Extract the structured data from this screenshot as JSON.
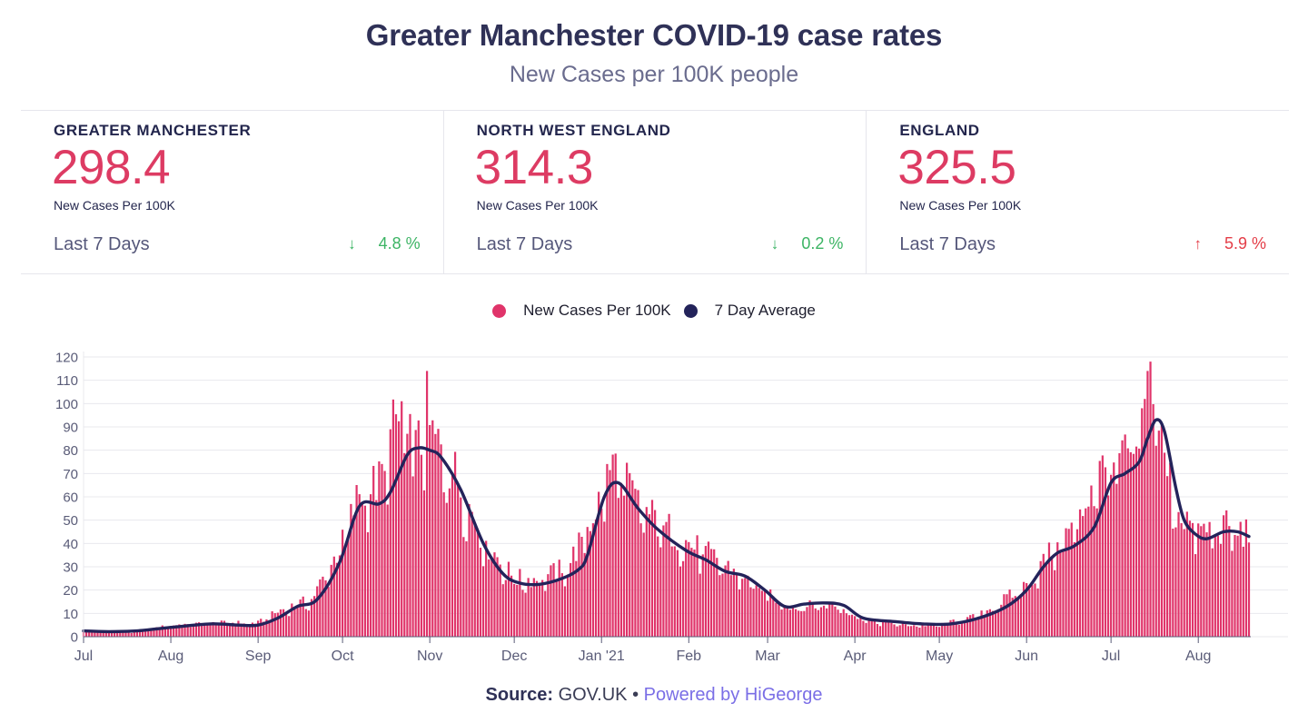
{
  "header": {
    "title": "Greater Manchester COVID-19 case rates",
    "subtitle": "New Cases per 100K people"
  },
  "cards": [
    {
      "region": "GREATER MANCHESTER",
      "value": "298.4",
      "unit": "New Cases Per 100K",
      "period": "Last 7 Days",
      "change": "4.8 %",
      "direction": "down",
      "arrow": "↓"
    },
    {
      "region": "NORTH WEST ENGLAND",
      "value": "314.3",
      "unit": "New Cases Per 100K",
      "period": "Last 7 Days",
      "change": "0.2 %",
      "direction": "down",
      "arrow": "↓"
    },
    {
      "region": "ENGLAND",
      "value": "325.5",
      "unit": "New Cases Per 100K",
      "period": "Last 7 Days",
      "change": "5.9 %",
      "direction": "up",
      "arrow": "↑"
    }
  ],
  "footer": {
    "source_label": "Source:",
    "source_value": "GOV.UK",
    "separator": "•",
    "powered_by": "Powered by HiGeorge"
  },
  "colors": {
    "bars": "#e0346a",
    "average_line": "#23235a",
    "value_text": "#dd3b63",
    "change_down": "#3cb464",
    "change_up": "#e43d47",
    "gridline": "#e8e8ee"
  },
  "chart_data": {
    "type": "bar",
    "title": "",
    "xlabel": "",
    "ylabel": "",
    "ylim": [
      0,
      120
    ],
    "yticks": [
      0,
      10,
      20,
      30,
      40,
      50,
      60,
      70,
      80,
      90,
      100,
      110,
      120
    ],
    "grid": true,
    "legend_position": "top-center",
    "x_start_date": "2020-07-01",
    "x_end_date": "2021-08-19",
    "x_tick_labels": [
      {
        "label": "Jul",
        "date": "2020-07-01"
      },
      {
        "label": "Aug",
        "date": "2020-08-01"
      },
      {
        "label": "Sep",
        "date": "2020-09-01"
      },
      {
        "label": "Oct",
        "date": "2020-10-01"
      },
      {
        "label": "Nov",
        "date": "2020-11-01"
      },
      {
        "label": "Dec",
        "date": "2020-12-01"
      },
      {
        "label": "Jan '21",
        "date": "2021-01-01"
      },
      {
        "label": "Feb",
        "date": "2021-02-01"
      },
      {
        "label": "Mar",
        "date": "2021-03-01"
      },
      {
        "label": "Apr",
        "date": "2021-04-01"
      },
      {
        "label": "May",
        "date": "2021-05-01"
      },
      {
        "label": "Jun",
        "date": "2021-06-01"
      },
      {
        "label": "Jul",
        "date": "2021-07-01"
      },
      {
        "label": "Aug",
        "date": "2021-08-01"
      }
    ],
    "series": [
      {
        "name": "New Cases Per 100K",
        "kind": "bar",
        "description": "daily values, shown as key dates",
        "keypoints": [
          [
            "2020-07-01",
            2.5
          ],
          [
            "2020-07-20",
            2
          ],
          [
            "2020-08-01",
            5
          ],
          [
            "2020-08-20",
            6
          ],
          [
            "2020-09-01",
            6
          ],
          [
            "2020-09-10",
            12
          ],
          [
            "2020-09-20",
            16
          ],
          [
            "2020-10-01",
            40
          ],
          [
            "2020-10-07",
            62
          ],
          [
            "2020-10-14",
            66
          ],
          [
            "2020-10-20",
            93
          ],
          [
            "2020-10-27",
            80
          ],
          [
            "2020-11-01",
            88
          ],
          [
            "2020-11-10",
            70
          ],
          [
            "2020-11-20",
            42
          ],
          [
            "2020-12-01",
            25
          ],
          [
            "2020-12-10",
            25
          ],
          [
            "2020-12-20",
            30
          ],
          [
            "2021-01-01",
            60
          ],
          [
            "2021-01-05",
            75
          ],
          [
            "2021-01-15",
            55
          ],
          [
            "2021-02-01",
            40
          ],
          [
            "2021-02-15",
            30
          ],
          [
            "2021-03-01",
            18
          ],
          [
            "2021-03-10",
            13
          ],
          [
            "2021-03-25",
            14
          ],
          [
            "2021-04-05",
            7
          ],
          [
            "2021-04-20",
            5
          ],
          [
            "2021-05-01",
            5
          ],
          [
            "2021-05-15",
            9
          ],
          [
            "2021-06-01",
            22
          ],
          [
            "2021-06-10",
            37
          ],
          [
            "2021-06-20",
            50
          ],
          [
            "2021-06-25",
            70
          ],
          [
            "2021-07-01",
            72
          ],
          [
            "2021-07-10",
            80
          ],
          [
            "2021-07-16",
            110
          ],
          [
            "2021-07-20",
            75
          ],
          [
            "2021-07-25",
            55
          ],
          [
            "2021-08-01",
            45
          ],
          [
            "2021-08-10",
            47
          ],
          [
            "2021-08-19",
            44
          ]
        ],
        "spikes": [
          [
            "2020-10-31",
            114
          ],
          [
            "2020-10-22",
            101
          ],
          [
            "2021-07-15",
            118
          ],
          [
            "2021-07-14",
            114
          ]
        ]
      },
      {
        "name": "7 Day Average",
        "kind": "line",
        "points": [
          [
            "2020-07-01",
            2.5
          ],
          [
            "2020-07-10",
            2.2
          ],
          [
            "2020-07-20",
            2.5
          ],
          [
            "2020-08-01",
            4
          ],
          [
            "2020-08-15",
            5.5
          ],
          [
            "2020-08-25",
            5
          ],
          [
            "2020-09-01",
            5
          ],
          [
            "2020-09-08",
            8
          ],
          [
            "2020-09-15",
            13
          ],
          [
            "2020-09-22",
            16
          ],
          [
            "2020-09-30",
            32
          ],
          [
            "2020-10-07",
            56
          ],
          [
            "2020-10-14",
            57
          ],
          [
            "2020-10-18",
            62
          ],
          [
            "2020-10-24",
            78
          ],
          [
            "2020-10-28",
            81
          ],
          [
            "2020-11-01",
            80
          ],
          [
            "2020-11-05",
            77
          ],
          [
            "2020-11-12",
            63
          ],
          [
            "2020-11-20",
            40
          ],
          [
            "2020-11-27",
            27
          ],
          [
            "2020-12-03",
            23
          ],
          [
            "2020-12-10",
            22.5
          ],
          [
            "2020-12-18",
            25
          ],
          [
            "2020-12-24",
            29
          ],
          [
            "2020-12-27",
            35
          ],
          [
            "2021-01-02",
            60
          ],
          [
            "2021-01-07",
            66
          ],
          [
            "2021-01-14",
            55
          ],
          [
            "2021-01-21",
            46
          ],
          [
            "2021-01-31",
            37
          ],
          [
            "2021-02-07",
            33
          ],
          [
            "2021-02-14",
            28
          ],
          [
            "2021-02-21",
            26
          ],
          [
            "2021-02-28",
            20
          ],
          [
            "2021-03-07",
            13
          ],
          [
            "2021-03-14",
            14
          ],
          [
            "2021-03-21",
            14.5
          ],
          [
            "2021-03-28",
            13.5
          ],
          [
            "2021-04-04",
            8
          ],
          [
            "2021-04-15",
            6.5
          ],
          [
            "2021-04-25",
            5.5
          ],
          [
            "2021-05-05",
            5.5
          ],
          [
            "2021-05-15",
            8
          ],
          [
            "2021-05-25",
            13
          ],
          [
            "2021-06-01",
            20
          ],
          [
            "2021-06-07",
            30
          ],
          [
            "2021-06-12",
            36
          ],
          [
            "2021-06-18",
            39
          ],
          [
            "2021-06-25",
            47
          ],
          [
            "2021-07-01",
            66
          ],
          [
            "2021-07-06",
            70
          ],
          [
            "2021-07-11",
            75
          ],
          [
            "2021-07-14",
            85
          ],
          [
            "2021-07-17",
            93
          ],
          [
            "2021-07-20",
            88
          ],
          [
            "2021-07-24",
            64
          ],
          [
            "2021-07-27",
            50
          ],
          [
            "2021-07-31",
            44
          ],
          [
            "2021-08-04",
            42
          ],
          [
            "2021-08-10",
            45
          ],
          [
            "2021-08-15",
            45
          ],
          [
            "2021-08-19",
            43
          ]
        ]
      }
    ]
  }
}
